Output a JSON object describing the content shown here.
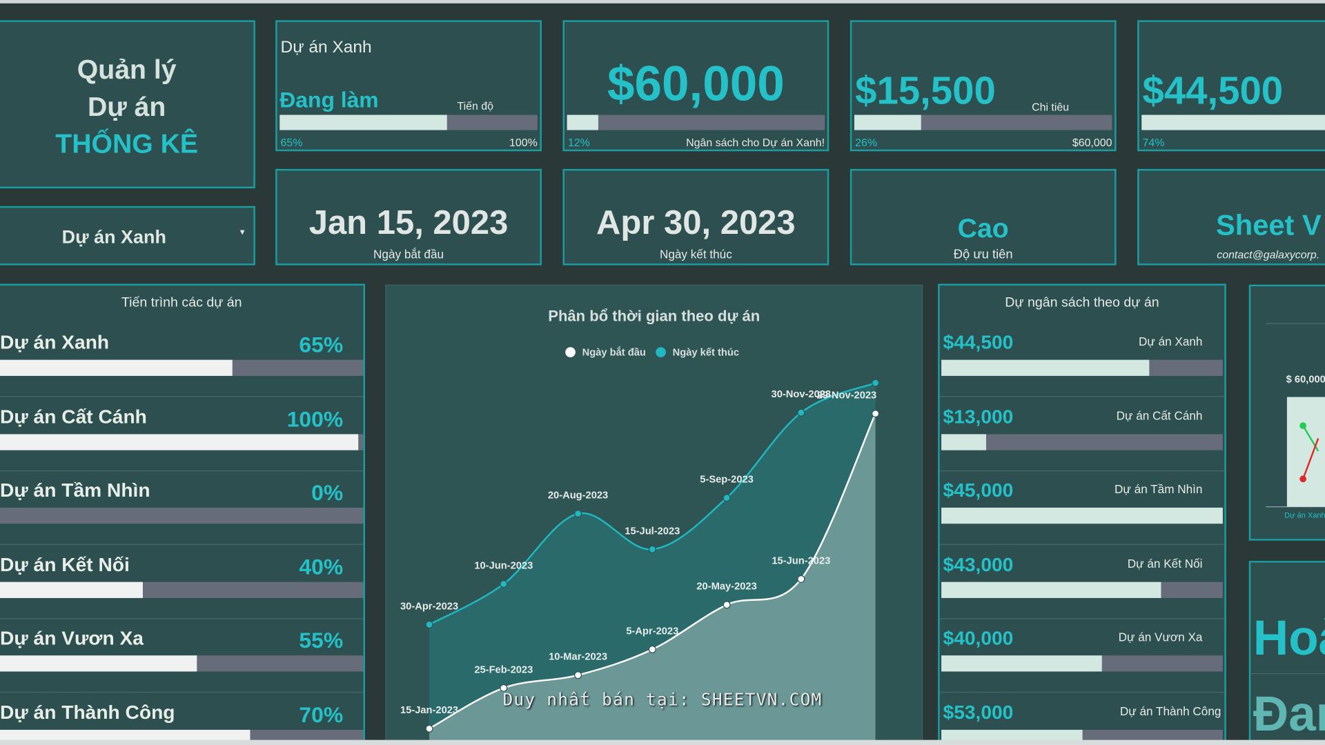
{
  "header": {
    "title_lines": [
      "Quản lý",
      "Dự án"
    ],
    "title_accent": "THỐNG KÊ",
    "selector": "Dự án Xanh"
  },
  "kpi_cards": [
    {
      "name": "Dự án Xanh",
      "status": "Đang làm",
      "label": "Tiến độ",
      "percent": 65,
      "percent_label": "65%",
      "max_label": "100%"
    },
    {
      "amount": "$60,000",
      "percent": 12,
      "percent_label": "12%",
      "caption": "Ngân sách cho Dự án Xanh!"
    },
    {
      "amount": "$15,500",
      "label": "Chi tiêu",
      "percent": 26,
      "percent_label": "26%",
      "max_label": "$60,000"
    },
    {
      "amount": "$44,500",
      "percent": 74,
      "percent_label": "74%"
    }
  ],
  "info_cards": [
    {
      "value": "Jan 15, 2023",
      "caption": "Ngày bắt đầu"
    },
    {
      "value": "Apr 30, 2023",
      "caption": "Ngày kết thúc"
    },
    {
      "value": "Cao",
      "caption": "Độ ưu tiên"
    },
    {
      "value": "Sheet V",
      "caption": "contact@galaxycorp."
    }
  ],
  "progress": {
    "title": "Tiến trình các dự án",
    "projects": [
      "Dự án Xanh",
      "Dự án Cất Cánh",
      "Dự án Tầm Nhìn",
      "Dự án Kết Nối",
      "Dự án Vươn Xa",
      "Dự án Thành Công"
    ],
    "values": [
      65,
      100,
      0,
      40,
      55,
      70
    ],
    "value_labels": [
      "65%",
      "100%",
      "0%",
      "40%",
      "55%",
      "70%"
    ]
  },
  "budget": {
    "title": "Dự ngân sách theo dự án",
    "projects": [
      "Dự án Xanh",
      "Dự án Cất Cánh",
      "Dự án Tầm Nhìn",
      "Dự án Kết Nối",
      "Dự án Vươn Xa",
      "Dự án Thành Công"
    ],
    "amounts": [
      "$44,500",
      "$13,000",
      "$45,000",
      "$43,000",
      "$40,000",
      "$53,000"
    ],
    "bar_percent": [
      74,
      16,
      100,
      78,
      57,
      50
    ]
  },
  "chart_data": {
    "type": "line",
    "title": "Phân bổ thời gian theo dự án",
    "ylim": [
      "2023-01-01",
      "2024-01-01"
    ],
    "series": [
      {
        "name": "Ngày bắt đầu",
        "color": "#ffffff",
        "values": [
          "2023-01-15",
          "2023-02-25",
          "2023-03-10",
          "2023-04-05",
          "2023-05-20",
          "2023-06-15",
          "2023-11-29"
        ],
        "value_labels": [
          "15-Jan-2023",
          "25-Feb-2023",
          "10-Mar-2023",
          "5-Apr-2023",
          "20-May-2023",
          "15-Jun-2023",
          "29-Nov-2023"
        ]
      },
      {
        "name": "Ngày kết thúc",
        "color": "#1fb9c1",
        "values": [
          "2023-04-30",
          "2023-06-10",
          "2023-08-20",
          "2023-07-15",
          "2023-09-05",
          "2023-11-30",
          "2023-12-30"
        ],
        "value_labels": [
          "30-Apr-2023",
          "10-Jun-2023",
          "20-Aug-2023",
          "15-Jul-2023",
          "5-Sep-2023",
          "30-Nov-2023",
          null
        ]
      }
    ]
  },
  "mini_chart": {
    "value_label": "$ 60,000",
    "category": "Dự án Xanh"
  },
  "side_panel": {
    "top": "Hoà",
    "bottom": "Đan"
  },
  "watermark": "Duy nhất bán tại: SHEETVN.COM"
}
